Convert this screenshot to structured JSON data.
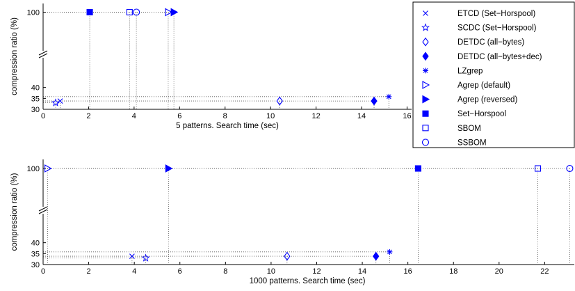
{
  "chart_data": [
    {
      "type": "scatter",
      "xlabel": "5 patterns. Search time (sec)",
      "ylabel": "compression ratio (%)",
      "xlim": [
        0,
        16.2
      ],
      "xticks": [
        0,
        2,
        4,
        6,
        8,
        10,
        12,
        14,
        16
      ],
      "ylim_lower": [
        30,
        45
      ],
      "ylim_upper": [
        97,
        103
      ],
      "yticks_lower": [
        30,
        35,
        40
      ],
      "yticks_upper": [
        100
      ],
      "axis_break": true,
      "grid": false,
      "points": [
        {
          "series": "ETCD (Set-Horspool)",
          "x": 0.75,
          "y": 33.8
        },
        {
          "series": "SCDC (Set-Horspool)",
          "x": 0.55,
          "y": 33.0
        },
        {
          "series": "DETDC (all-bytes)",
          "x": 10.4,
          "y": 33.8
        },
        {
          "series": "DETDC (all-bytes+dec)",
          "x": 14.55,
          "y": 33.8
        },
        {
          "series": "LZgrep",
          "x": 15.2,
          "y": 35.8
        },
        {
          "series": "Agrep (default)",
          "x": 5.5,
          "y": 100
        },
        {
          "series": "Agrep (reversed)",
          "x": 5.75,
          "y": 100
        },
        {
          "series": "Set-Horspool",
          "x": 2.05,
          "y": 100
        },
        {
          "series": "SBOM",
          "x": 3.8,
          "y": 100
        },
        {
          "series": "SSBOM",
          "x": 4.1,
          "y": 100
        }
      ]
    },
    {
      "type": "scatter",
      "xlabel": "1000 patterns. Search time (sec)",
      "ylabel": "compression ratio (%)",
      "xlim": [
        0,
        23.3
      ],
      "xticks": [
        0,
        2,
        4,
        6,
        8,
        10,
        12,
        14,
        16,
        18,
        20,
        22
      ],
      "ylim_lower": [
        30,
        45
      ],
      "ylim_upper": [
        97,
        103
      ],
      "yticks_lower": [
        30,
        35,
        40
      ],
      "yticks_upper": [
        100
      ],
      "axis_break": true,
      "grid": false,
      "points": [
        {
          "series": "ETCD (Set-Horspool)",
          "x": 3.9,
          "y": 33.8
        },
        {
          "series": "SCDC (Set-Horspool)",
          "x": 4.5,
          "y": 33.0
        },
        {
          "series": "DETDC (all-bytes)",
          "x": 10.7,
          "y": 33.8
        },
        {
          "series": "DETDC (all-bytes+dec)",
          "x": 14.6,
          "y": 33.8
        },
        {
          "series": "LZgrep",
          "x": 15.2,
          "y": 35.8
        },
        {
          "series": "Agrep (default)",
          "x": 0.2,
          "y": 100
        },
        {
          "series": "Agrep (reversed)",
          "x": 5.5,
          "y": 100
        },
        {
          "series": "Set-Horspool",
          "x": 16.45,
          "y": 100
        },
        {
          "series": "SBOM",
          "x": 21.7,
          "y": 100
        },
        {
          "series": "SSBOM",
          "x": 23.1,
          "y": 100
        }
      ]
    }
  ],
  "legend": {
    "placement": "right",
    "items": [
      {
        "label": "ETCD (Set−Horspool)",
        "marker": "x"
      },
      {
        "label": "SCDC (Set−Horspool)",
        "marker": "star"
      },
      {
        "label": "DETDC (all−bytes)",
        "marker": "diamond-open"
      },
      {
        "label": "DETDC (all−bytes+dec)",
        "marker": "diamond-filled"
      },
      {
        "label": "LZgrep",
        "marker": "asterisk"
      },
      {
        "label": "Agrep (default)",
        "marker": "triangle-right-open"
      },
      {
        "label": "Agrep (reversed)",
        "marker": "triangle-right-filled"
      },
      {
        "label": "Set−Horspool",
        "marker": "square-filled"
      },
      {
        "label": "SBOM",
        "marker": "square-open"
      },
      {
        "label": "SSBOM",
        "marker": "circle-open"
      }
    ]
  },
  "colors": {
    "marker": "#0000ff",
    "axis": "#000000",
    "guide": "#555555"
  }
}
